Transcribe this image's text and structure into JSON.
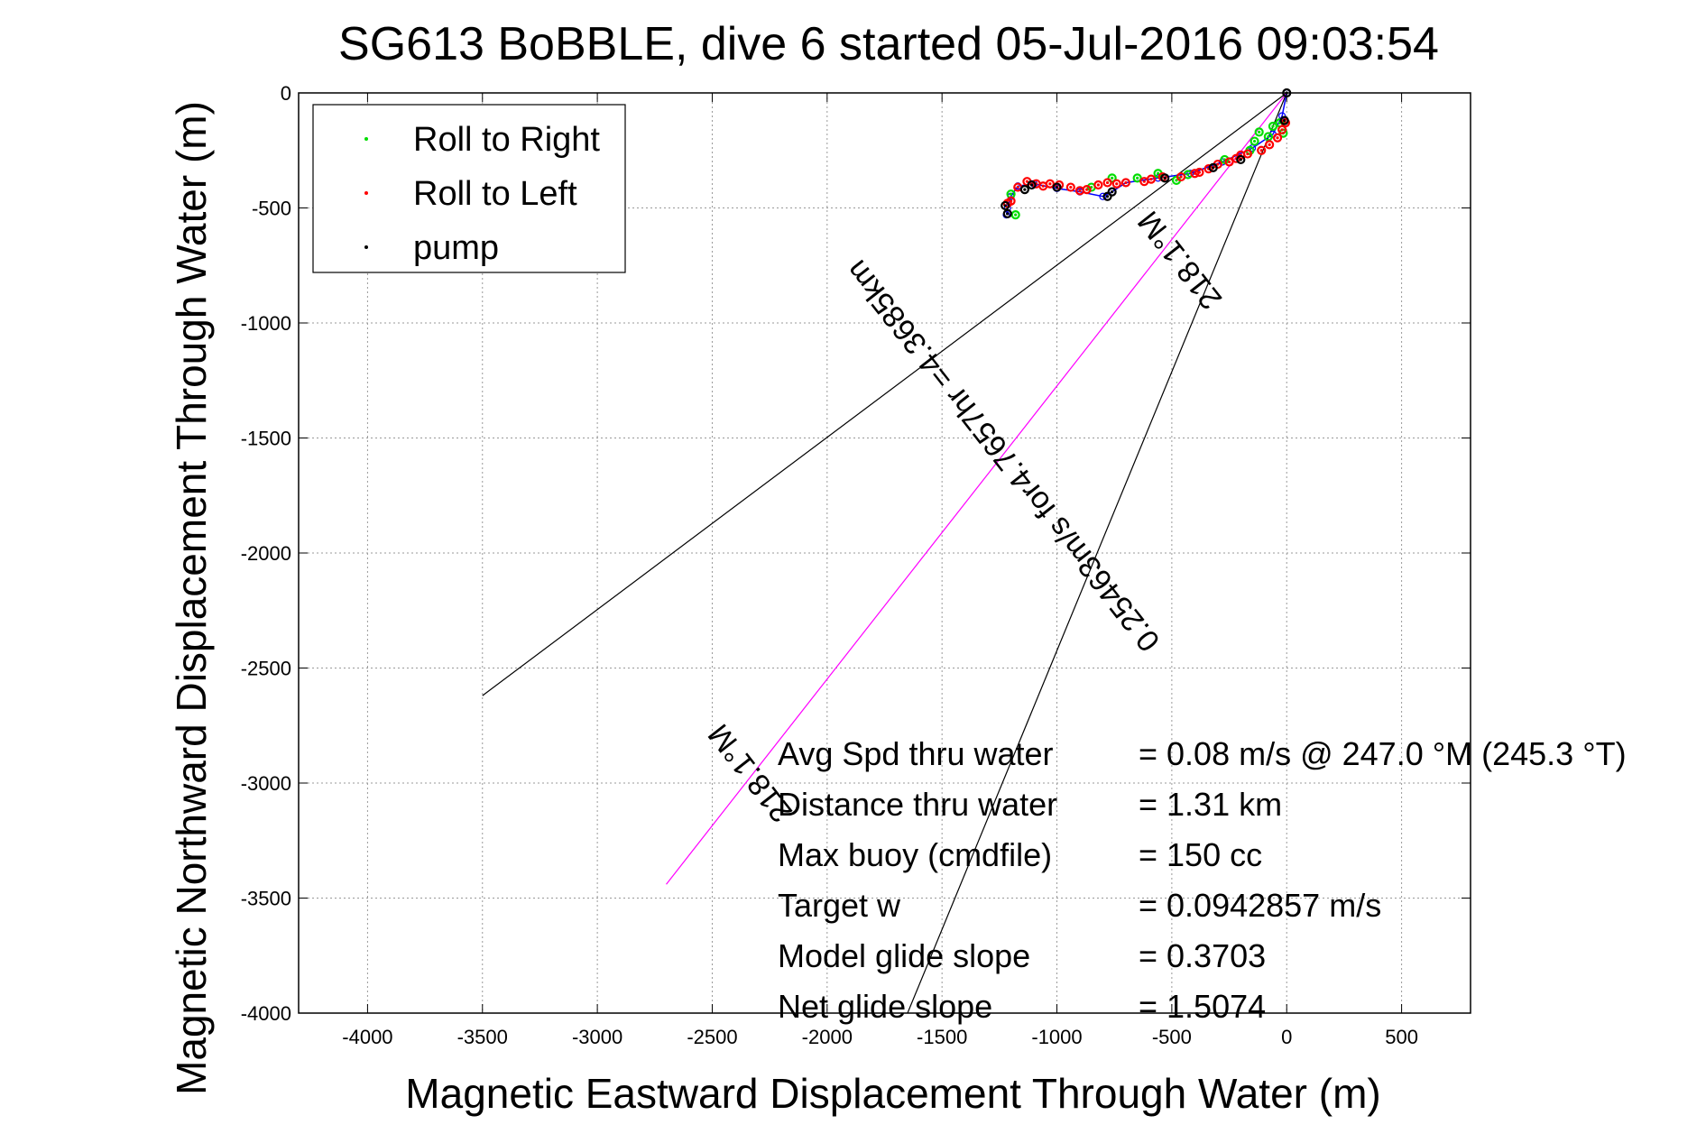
{
  "chart_data": {
    "type": "scatter",
    "title": "SG613 BoBBLE, dive 6 started 05-Jul-2016 09:03:54",
    "xlabel": "Magnetic Eastward Displacement Through Water (m)",
    "ylabel": "Magnetic Northward Displacement Through Water (m)",
    "xlim": [
      -4300,
      800
    ],
    "ylim": [
      -4000,
      0
    ],
    "xticks": [
      -4000,
      -3500,
      -3000,
      -2500,
      -2000,
      -1500,
      -1000,
      -500,
      0,
      500
    ],
    "yticks": [
      0,
      -500,
      -1000,
      -1500,
      -2000,
      -2500,
      -3000,
      -3500,
      -4000
    ],
    "grid": true,
    "legend_position": "top-left",
    "series": [
      {
        "name": "Roll to Right",
        "color": "#00dd00",
        "marker": "dot",
        "points": [
          [
            -1200,
            -440
          ],
          [
            -1180,
            -530
          ],
          [
            -850,
            -410
          ],
          [
            -760,
            -370
          ],
          [
            -650,
            -370
          ],
          [
            -560,
            -350
          ],
          [
            -480,
            -380
          ],
          [
            -430,
            -355
          ],
          [
            -270,
            -290
          ],
          [
            -160,
            -250
          ],
          [
            -140,
            -210
          ],
          [
            -120,
            -170
          ],
          [
            -80,
            -190
          ],
          [
            -60,
            -145
          ],
          [
            -30,
            -130
          ],
          [
            -15,
            -175
          ]
        ]
      },
      {
        "name": "Roll to Left",
        "color": "#ff0000",
        "marker": "dot",
        "points": [
          [
            -1215,
            -480
          ],
          [
            -1200,
            -470
          ],
          [
            -1170,
            -410
          ],
          [
            -1130,
            -385
          ],
          [
            -1090,
            -395
          ],
          [
            -1060,
            -405
          ],
          [
            -1030,
            -395
          ],
          [
            -990,
            -400
          ],
          [
            -940,
            -410
          ],
          [
            -900,
            -425
          ],
          [
            -870,
            -420
          ],
          [
            -820,
            -400
          ],
          [
            -780,
            -390
          ],
          [
            -740,
            -395
          ],
          [
            -700,
            -390
          ],
          [
            -620,
            -385
          ],
          [
            -590,
            -375
          ],
          [
            -540,
            -365
          ],
          [
            -460,
            -365
          ],
          [
            -400,
            -350
          ],
          [
            -380,
            -345
          ],
          [
            -340,
            -330
          ],
          [
            -300,
            -310
          ],
          [
            -250,
            -300
          ],
          [
            -220,
            -285
          ],
          [
            -200,
            -270
          ],
          [
            -170,
            -265
          ],
          [
            -110,
            -250
          ],
          [
            -75,
            -225
          ],
          [
            -40,
            -195
          ],
          [
            -20,
            -160
          ],
          [
            -5,
            -130
          ]
        ]
      },
      {
        "name": "pump",
        "color": "#000000",
        "marker": "dot",
        "points": [
          [
            -1225,
            -490
          ],
          [
            -1215,
            -525
          ],
          [
            -1140,
            -420
          ],
          [
            -1110,
            -400
          ],
          [
            -1000,
            -410
          ],
          [
            -760,
            -430
          ],
          [
            -780,
            -450
          ],
          [
            -530,
            -370
          ],
          [
            -320,
            -325
          ],
          [
            -200,
            -290
          ],
          [
            0,
            0
          ],
          [
            -10,
            -120
          ]
        ]
      }
    ],
    "track": {
      "color": "#0000ff",
      "points": [
        [
          0,
          0
        ],
        [
          -20,
          -100
        ],
        [
          -60,
          -180
        ],
        [
          -150,
          -240
        ],
        [
          -280,
          -300
        ],
        [
          -420,
          -350
        ],
        [
          -560,
          -370
        ],
        [
          -700,
          -390
        ],
        [
          -760,
          -430
        ],
        [
          -800,
          -450
        ],
        [
          -900,
          -430
        ],
        [
          -1000,
          -415
        ],
        [
          -1100,
          -395
        ],
        [
          -1170,
          -405
        ],
        [
          -1200,
          -450
        ],
        [
          -1215,
          -500
        ],
        [
          -1220,
          -530
        ]
      ]
    },
    "reference_lines": [
      {
        "color": "#000000",
        "from": [
          0,
          0
        ],
        "to": [
          -3500,
          -2620
        ]
      },
      {
        "color": "#000000",
        "from": [
          0,
          0
        ],
        "to": [
          -1650,
          -4000
        ]
      },
      {
        "color": "#ff00ff",
        "from": [
          0,
          0
        ],
        "to": [
          -2700,
          -3440
        ]
      }
    ],
    "annotations": [
      {
        "text": "218.1°M",
        "x": -430,
        "y": -700,
        "angle_deg": 231.9
      },
      {
        "text": "0.25463m/s for4.7657hr =4.3685km",
        "x": -1200,
        "y": -1550,
        "angle_deg": 231.9
      },
      {
        "text": "218.1°M",
        "x": -2300,
        "y": -2930,
        "angle_deg": 231.9
      }
    ],
    "legend": [
      {
        "label": "Roll to Right",
        "color": "#00dd00"
      },
      {
        "label": "Roll to Left",
        "color": "#ff0000"
      },
      {
        "label": "pump",
        "color": "#000000"
      }
    ],
    "summary": [
      {
        "label": "Avg Spd thru water",
        "value": "=  0.08 m/s @ 247.0 °M (245.3 °T)"
      },
      {
        "label": "Distance thru water",
        "value": "=  1.31 km"
      },
      {
        "label": "Max buoy (cmdfile)",
        "value": "= 150 cc"
      },
      {
        "label": "Target w",
        "value": "= 0.0942857 m/s"
      },
      {
        "label": "Model glide slope",
        "value": "= 0.3703"
      },
      {
        "label": "Net glide slope",
        "value": "= 1.5074"
      }
    ]
  }
}
